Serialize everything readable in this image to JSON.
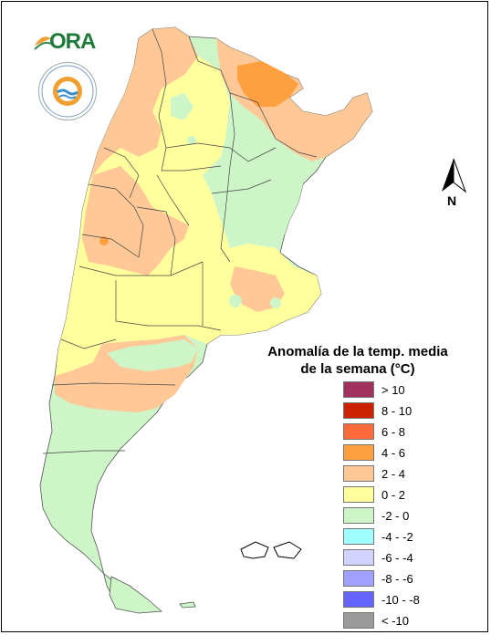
{
  "logo": {
    "text": "ORA"
  },
  "compass": {
    "label": "N"
  },
  "legend": {
    "title_line1": "Anomalía de la temp. media",
    "title_line2": "de la semana (°C)",
    "items": [
      {
        "label": "> 10",
        "color": "#a0305e"
      },
      {
        "label": "8 - 10",
        "color": "#cc2200"
      },
      {
        "label": "6 - 8",
        "color": "#ff6a3a"
      },
      {
        "label": "4 - 6",
        "color": "#ffa040"
      },
      {
        "label": "2 - 4",
        "color": "#ffc896"
      },
      {
        "label": "0 - 2",
        "color": "#ffff9e"
      },
      {
        "label": "-2 - 0",
        "color": "#cdf5c8"
      },
      {
        "label": "-4 - -2",
        "color": "#a0ffff"
      },
      {
        "label": "-6 - -4",
        "color": "#d2d2ff"
      },
      {
        "label": "-8 - -6",
        "color": "#a0a0ff"
      },
      {
        "label": "-10 - -8",
        "color": "#6464ff"
      },
      {
        "label": "< -10",
        "color": "#9b9b9b"
      }
    ]
  }
}
